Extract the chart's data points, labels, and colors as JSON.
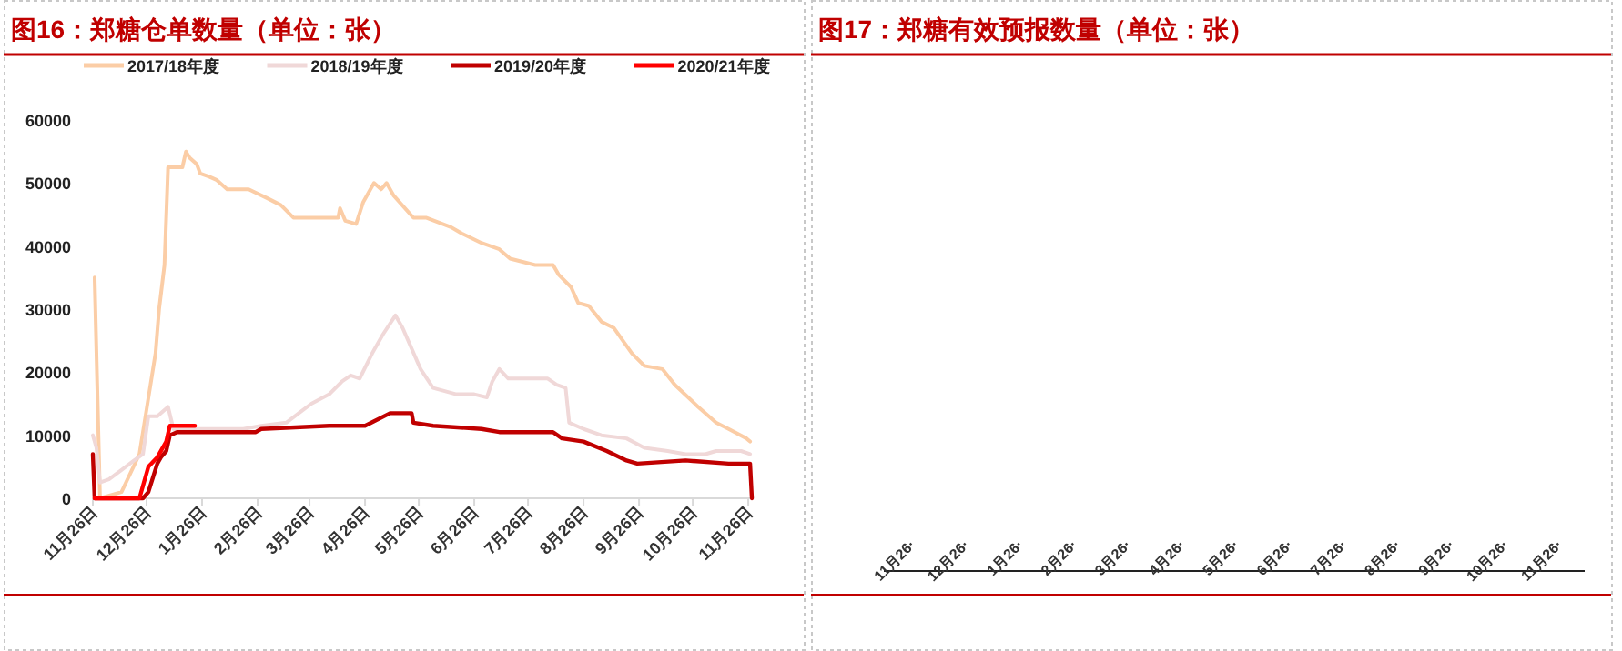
{
  "chart_data": [
    {
      "type": "line",
      "title": "图16：郑糖仓单数量（单位：张）",
      "legend": "top",
      "grid": false,
      "marker": "none",
      "line_style": "solid",
      "xlim": [
        "2019-11-26",
        "2020-11-29"
      ],
      "ylim": [
        0,
        60000
      ],
      "yticks": [
        0,
        10000,
        20000,
        30000,
        40000,
        50000,
        60000
      ],
      "xticks": [
        {
          "value": "2019-11-26",
          "label": "11月26日"
        },
        {
          "value": "2019-12-26",
          "label": "12月26日"
        },
        {
          "value": "2020-01-26",
          "label": "1月26日"
        },
        {
          "value": "2020-02-26",
          "label": "2月26日"
        },
        {
          "value": "2020-03-26",
          "label": "3月26日"
        },
        {
          "value": "2020-04-26",
          "label": "4月26日"
        },
        {
          "value": "2020-05-26",
          "label": "5月26日"
        },
        {
          "value": "2020-06-26",
          "label": "6月26日"
        },
        {
          "value": "2020-07-26",
          "label": "7月26日"
        },
        {
          "value": "2020-08-26",
          "label": "8月26日"
        },
        {
          "value": "2020-09-26",
          "label": "9月26日"
        },
        {
          "value": "2020-10-26",
          "label": "10月26日"
        },
        {
          "value": "2020-11-26",
          "label": "11月26日"
        }
      ],
      "series": [
        {
          "name": "2017/18年度",
          "color": "#fbcda6",
          "x": [
            "2019-11-27",
            "2019-11-30",
            "2019-12-12",
            "2019-12-22",
            "2019-12-31",
            "2020-01-02",
            "2020-01-05",
            "2020-01-07",
            "2020-01-15",
            "2020-01-17",
            "2020-01-19",
            "2020-01-23",
            "2020-01-25",
            "2020-01-30",
            "2020-02-03",
            "2020-02-09",
            "2020-02-21",
            "2020-03-03",
            "2020-03-10",
            "2020-03-17",
            "2020-03-27",
            "2020-04-11",
            "2020-04-12",
            "2020-04-15",
            "2020-04-21",
            "2020-04-25",
            "2020-05-01",
            "2020-05-05",
            "2020-05-08",
            "2020-05-12",
            "2020-05-23",
            "2020-05-30",
            "2020-06-13",
            "2020-06-19",
            "2020-06-30",
            "2020-07-10",
            "2020-07-16",
            "2020-07-23",
            "2020-07-30",
            "2020-08-09",
            "2020-08-12",
            "2020-08-19",
            "2020-08-23",
            "2020-08-29",
            "2020-09-05",
            "2020-09-12",
            "2020-09-22",
            "2020-09-29",
            "2020-10-09",
            "2020-10-16",
            "2020-10-29",
            "2020-11-08",
            "2020-11-15",
            "2020-11-25",
            "2020-11-27"
          ],
          "values": [
            35000,
            0,
            1000,
            7000,
            23000,
            30000,
            37000,
            52500,
            52500,
            55000,
            54000,
            53000,
            51500,
            51000,
            50500,
            49000,
            49000,
            47500,
            46500,
            44500,
            44500,
            44500,
            46000,
            44000,
            43500,
            47000,
            50000,
            49000,
            50000,
            48000,
            44500,
            44500,
            43000,
            42000,
            40500,
            39500,
            38000,
            37500,
            37000,
            37000,
            35500,
            33500,
            31000,
            30500,
            28000,
            27000,
            23000,
            21000,
            20500,
            18000,
            14500,
            12000,
            11000,
            9500,
            9000
          ]
        },
        {
          "name": "2018/19年度",
          "color": "#f0d8d8",
          "x": [
            "2019-11-26",
            "2019-11-28",
            "2019-11-30",
            "2019-12-05",
            "2019-12-12",
            "2019-12-19",
            "2019-12-24",
            "2019-12-27",
            "2020-01-01",
            "2020-01-07",
            "2020-01-10",
            "2020-01-15",
            "2020-02-18",
            "2020-02-28",
            "2020-03-13",
            "2020-03-20",
            "2020-03-27",
            "2020-04-06",
            "2020-04-13",
            "2020-04-18",
            "2020-04-23",
            "2020-04-30",
            "2020-05-06",
            "2020-05-13",
            "2020-05-17",
            "2020-05-27",
            "2020-06-03",
            "2020-06-16",
            "2020-06-26",
            "2020-07-03",
            "2020-07-06",
            "2020-07-10",
            "2020-07-15",
            "2020-08-06",
            "2020-08-11",
            "2020-08-16",
            "2020-08-18",
            "2020-08-26",
            "2020-09-05",
            "2020-09-19",
            "2020-09-29",
            "2020-10-12",
            "2020-10-22",
            "2020-11-02",
            "2020-11-08",
            "2020-11-22",
            "2020-11-27"
          ],
          "values": [
            10000,
            8000,
            2500,
            3000,
            4500,
            6000,
            7000,
            13000,
            13000,
            14500,
            11000,
            11000,
            11000,
            11500,
            12000,
            13500,
            15000,
            16500,
            18500,
            19500,
            19000,
            23000,
            26000,
            29000,
            27000,
            20500,
            17500,
            16500,
            16500,
            16000,
            18500,
            20500,
            19000,
            19000,
            18000,
            17500,
            12000,
            11000,
            10000,
            9500,
            8000,
            7500,
            7000,
            7000,
            7500,
            7500,
            7000
          ]
        },
        {
          "name": "2019/20年度",
          "color": "#c00000",
          "x": [
            "2019-11-26",
            "2019-11-27",
            "2019-12-24",
            "2019-12-27",
            "2020-01-01",
            "2020-01-03",
            "2020-01-06",
            "2020-01-08",
            "2020-01-12",
            "2020-02-25",
            "2020-02-28",
            "2020-04-06",
            "2020-04-26",
            "2020-05-10",
            "2020-05-22",
            "2020-05-23",
            "2020-06-03",
            "2020-06-30",
            "2020-07-10",
            "2020-08-09",
            "2020-08-14",
            "2020-08-26",
            "2020-09-08",
            "2020-09-19",
            "2020-09-25",
            "2020-10-22",
            "2020-11-15",
            "2020-11-27",
            "2020-11-28"
          ],
          "values": [
            7000,
            0,
            0,
            1000,
            5500,
            6500,
            7500,
            10000,
            10500,
            10500,
            11000,
            11500,
            11500,
            13500,
            13500,
            12000,
            11500,
            11000,
            10500,
            10500,
            9500,
            9000,
            7500,
            6000,
            5500,
            6000,
            5500,
            5500,
            0
          ]
        },
        {
          "name": "2020/21年度",
          "color": "#ff0000",
          "x": [
            "2019-11-27",
            "2019-12-22",
            "2019-12-27",
            "2020-01-01",
            "2020-01-06",
            "2020-01-08",
            "2020-01-22"
          ],
          "values": [
            0,
            0,
            5000,
            6500,
            9000,
            11500,
            11500
          ]
        }
      ]
    },
    {
      "type": "other",
      "title": "图17：郑糖有效预报数量（单位：张）",
      "categories": [
        "11月26·",
        "12月26·",
        "1月26·",
        "2月26·",
        "3月26·",
        "4月26·",
        "5月26·",
        "6月26·",
        "7月26·",
        "8月26·",
        "9月26·",
        "10月26·",
        "11月26·"
      ]
    }
  ]
}
